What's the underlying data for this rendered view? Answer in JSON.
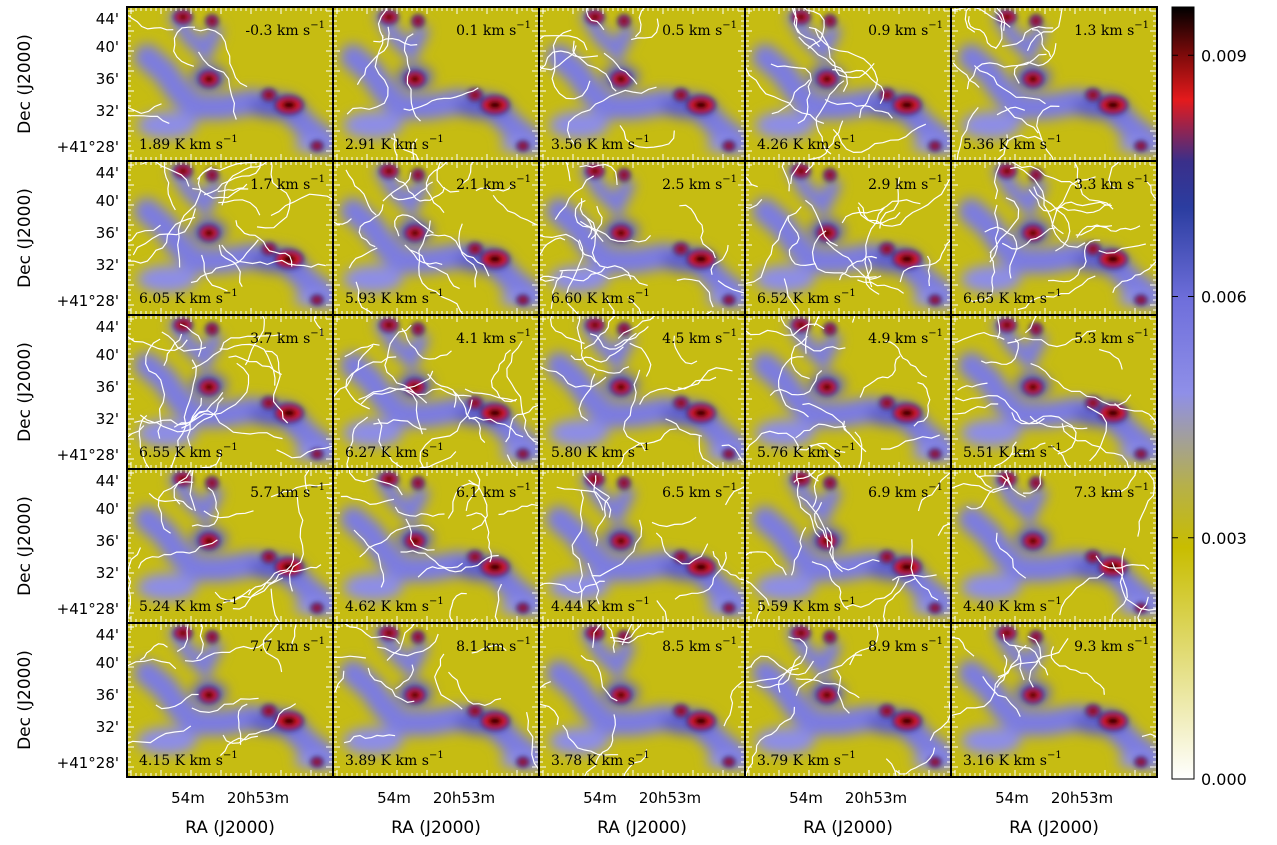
{
  "chart_data": {
    "type": "heatmap",
    "layout": {
      "rows": 5,
      "cols": 5
    },
    "xlabel": "RA (J2000)",
    "ylabel": "Dec (J2000)",
    "x_ticks": [
      "54m",
      "20h53m"
    ],
    "y_ticks": [
      "44'",
      "40'",
      "36'",
      "32'",
      "+41°28'"
    ],
    "colorbar": {
      "ticks": [
        "0.009",
        "0.006",
        "0.003",
        "0.000"
      ],
      "tick_values": [
        0.009,
        0.006,
        0.003,
        0.0
      ],
      "range": [
        0.0,
        0.0096
      ],
      "colors": [
        "#ffffff",
        "#c8bd00",
        "#6f6fdb",
        "#2b2b99",
        "#e41a1c",
        "#000000"
      ]
    },
    "contour_color": "#ffffff",
    "velocity_unit": "km s",
    "flux_unit": "K km s",
    "unit_exponent": "−1",
    "panels": [
      {
        "velocity": "-0.3",
        "flux": "1.89"
      },
      {
        "velocity": "0.1",
        "flux": "2.91"
      },
      {
        "velocity": "0.5",
        "flux": "3.56"
      },
      {
        "velocity": "0.9",
        "flux": "4.26"
      },
      {
        "velocity": "1.3",
        "flux": "5.36"
      },
      {
        "velocity": "1.7",
        "flux": "6.05"
      },
      {
        "velocity": "2.1",
        "flux": "5.93"
      },
      {
        "velocity": "2.5",
        "flux": "6.60"
      },
      {
        "velocity": "2.9",
        "flux": "6.52"
      },
      {
        "velocity": "3.3",
        "flux": "6.65"
      },
      {
        "velocity": "3.7",
        "flux": "6.55"
      },
      {
        "velocity": "4.1",
        "flux": "6.27"
      },
      {
        "velocity": "4.5",
        "flux": "5.80"
      },
      {
        "velocity": "4.9",
        "flux": "5.76"
      },
      {
        "velocity": "5.3",
        "flux": "5.51"
      },
      {
        "velocity": "5.7",
        "flux": "5.24"
      },
      {
        "velocity": "6.1",
        "flux": "4.62"
      },
      {
        "velocity": "6.5",
        "flux": "4.44"
      },
      {
        "velocity": "6.9",
        "flux": "5.59"
      },
      {
        "velocity": "7.3",
        "flux": "4.40"
      },
      {
        "velocity": "7.7",
        "flux": "4.15"
      },
      {
        "velocity": "8.1",
        "flux": "3.89"
      },
      {
        "velocity": "8.5",
        "flux": "3.78"
      },
      {
        "velocity": "8.9",
        "flux": "3.79"
      },
      {
        "velocity": "9.3",
        "flux": "3.16"
      }
    ]
  }
}
